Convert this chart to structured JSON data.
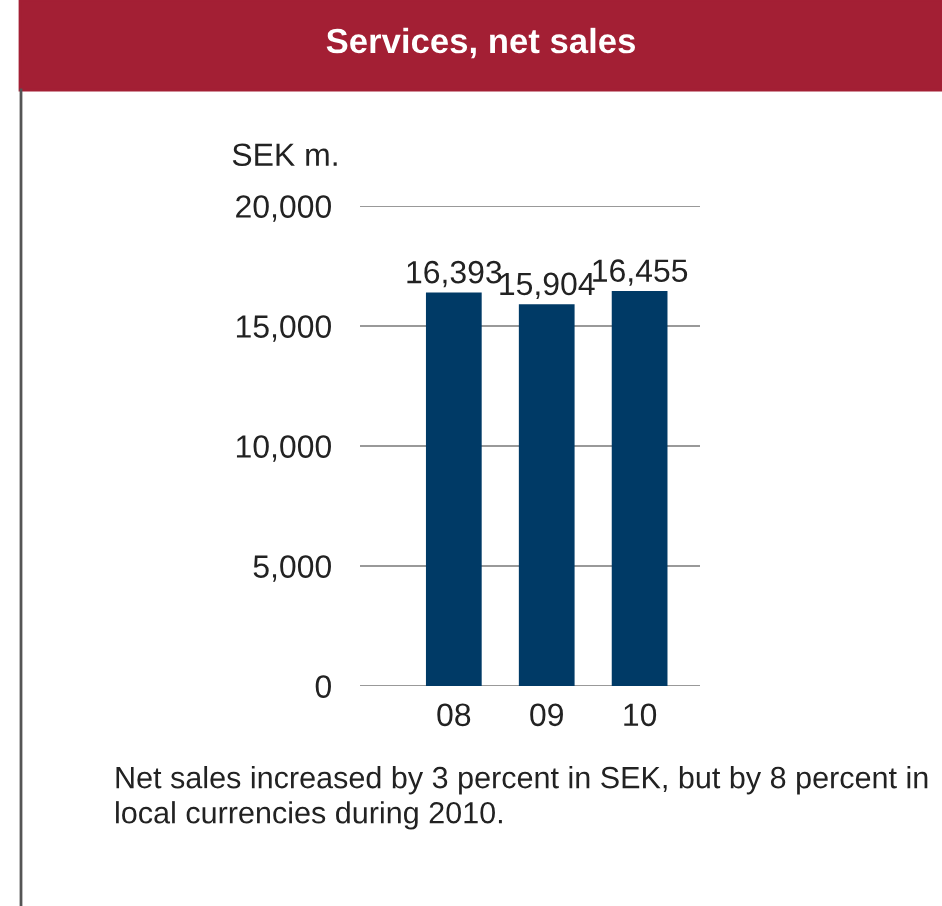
{
  "chart_data": {
    "type": "bar",
    "title": "Services, net sales",
    "ylabel": "SEK m.",
    "categories": [
      "08",
      "09",
      "10"
    ],
    "values": [
      16393,
      15904,
      16455
    ],
    "value_labels": [
      "16,393",
      "15,904",
      "16,455"
    ],
    "color": "#003a66",
    "ylim": [
      0,
      20000
    ],
    "yticks": [
      {
        "value": 0,
        "label": "0"
      },
      {
        "value": 5000,
        "label": "5,000"
      },
      {
        "value": 10000,
        "label": "10,000"
      },
      {
        "value": 15000,
        "label": "15,000"
      },
      {
        "value": 20000,
        "label": "20,000"
      }
    ],
    "grid": "y",
    "annotations": [
      "Net sales increased by 3 percent in SEK, but by 8 percent in local currencies during 2010."
    ]
  }
}
